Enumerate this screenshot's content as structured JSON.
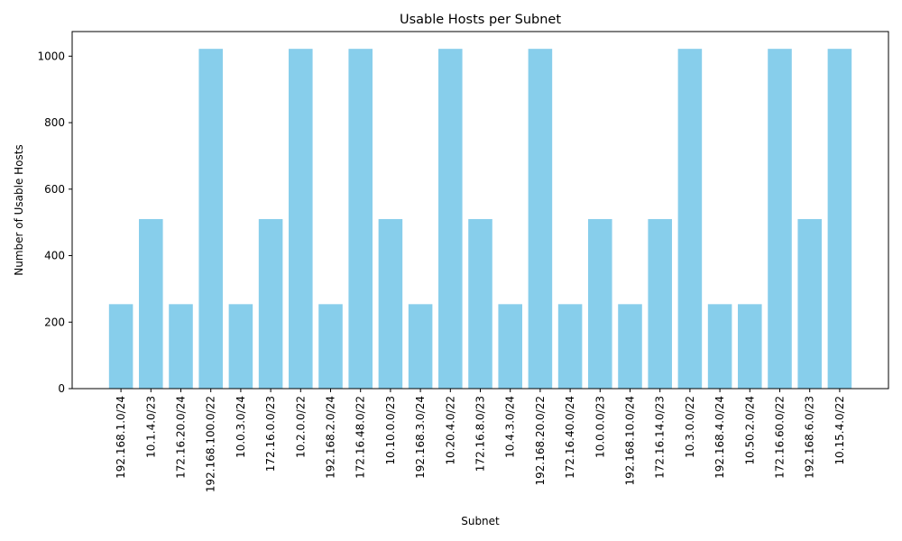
{
  "chart_data": {
    "type": "bar",
    "title": "Usable Hosts per Subnet",
    "xlabel": "Subnet",
    "ylabel": "Number of Usable Hosts",
    "bar_color": "#87CEEB",
    "ylim": [
      0,
      1074
    ],
    "yticks": [
      0,
      200,
      400,
      600,
      800,
      1000
    ],
    "grid": false,
    "categories": [
      "192.168.1.0/24",
      "10.1.4.0/23",
      "172.16.20.0/24",
      "192.168.100.0/22",
      "10.0.3.0/24",
      "172.16.0.0/23",
      "10.2.0.0/22",
      "192.168.2.0/24",
      "172.16.48.0/22",
      "10.10.0.0/23",
      "192.168.3.0/24",
      "10.20.4.0/22",
      "172.16.8.0/23",
      "10.4.3.0/24",
      "192.168.20.0/22",
      "172.16.40.0/24",
      "10.0.0.0/23",
      "192.168.10.0/24",
      "172.16.14.0/23",
      "10.3.0.0/22",
      "192.168.4.0/24",
      "10.50.2.0/24",
      "172.16.60.0/22",
      "192.168.6.0/23",
      "10.15.4.0/22"
    ],
    "values": [
      254,
      510,
      254,
      1022,
      254,
      510,
      1022,
      254,
      1022,
      510,
      254,
      1022,
      510,
      254,
      1022,
      254,
      510,
      254,
      510,
      1022,
      254,
      254,
      1022,
      510,
      1022
    ]
  }
}
